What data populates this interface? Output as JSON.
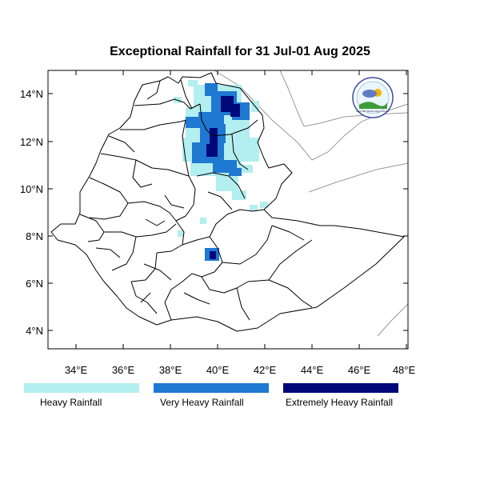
{
  "title": "Exceptional Rainfall for 31 Jul-01 Aug 2025",
  "axes": {
    "lat_labels": [
      "14°N",
      "12°N",
      "10°N",
      "8°N",
      "6°N",
      "4°N"
    ],
    "lon_labels": [
      "34°E",
      "36°E",
      "38°E",
      "40°E",
      "42°E",
      "44°E",
      "46°E",
      "48°E"
    ]
  },
  "legend": [
    {
      "label": "Heavy Rainfall",
      "color": "#b3eef0"
    },
    {
      "label": "Very Heavy Rainfall",
      "color": "#1f78d1"
    },
    {
      "label": "Extremely Heavy Rainfall",
      "color": "#00087a"
    }
  ],
  "logo": {
    "text": "Ethiopian Meteorology Institute",
    "icon": "weather-institute-logo"
  },
  "colors": {
    "country_border": "#000000",
    "neighbor_border": "#9a9a9a"
  }
}
